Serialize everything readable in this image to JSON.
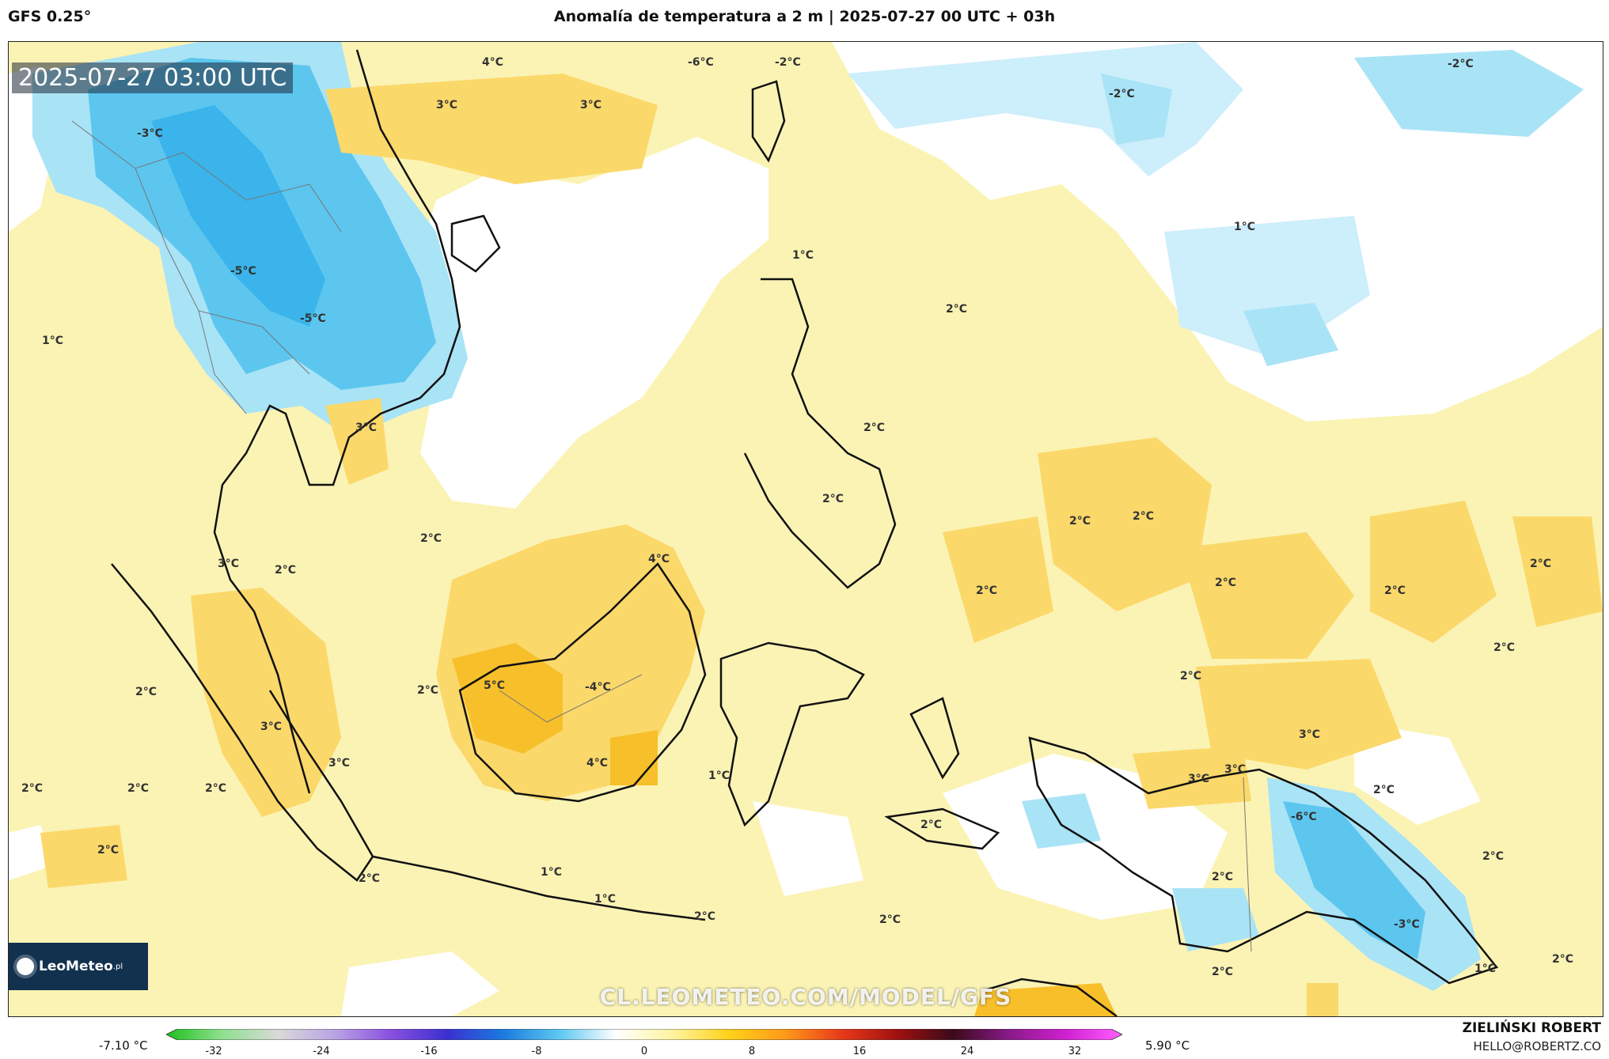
{
  "header": {
    "model": "GFS 0.25°",
    "title": "Anomalía de temperatura a 2 m | 2025-07-27 00 UTC + 03h"
  },
  "map": {
    "timestamp": "2025-07-27 03:00 UTC",
    "logo_text": "LeoMeteo",
    "logo_suffix": ".pl",
    "watermark": "CL.LEOMETEO.COM/MODEL/GFS",
    "labels": [
      {
        "text": "4°C"
      },
      {
        "text": "-6°C"
      },
      {
        "text": "-2°C"
      },
      {
        "text": "3°C"
      },
      {
        "text": "3°C"
      },
      {
        "text": "-3°C"
      },
      {
        "text": "-2°C"
      },
      {
        "text": "-2°C"
      },
      {
        "text": "1°C"
      },
      {
        "text": "1°C"
      },
      {
        "text": "-5°C"
      },
      {
        "text": "-5°C"
      },
      {
        "text": "2°C"
      },
      {
        "text": "1°C"
      },
      {
        "text": "3°C"
      },
      {
        "text": "2°C"
      },
      {
        "text": "2°C"
      },
      {
        "text": "2°C"
      },
      {
        "text": "2°C"
      },
      {
        "text": "3°C"
      },
      {
        "text": "2°C"
      },
      {
        "text": "4°C"
      },
      {
        "text": "2°C"
      },
      {
        "text": "2°C"
      },
      {
        "text": "2°C"
      },
      {
        "text": "2°C"
      },
      {
        "text": "2°C"
      },
      {
        "text": "2°C"
      },
      {
        "text": "2°C"
      },
      {
        "text": "5°C"
      },
      {
        "text": "-4°C"
      },
      {
        "text": "3°C"
      },
      {
        "text": "2°C"
      },
      {
        "text": "2°C"
      },
      {
        "text": "3°C"
      },
      {
        "text": "3°C"
      },
      {
        "text": "3°C"
      },
      {
        "text": "4°C"
      },
      {
        "text": "1°C"
      },
      {
        "text": "2°C"
      },
      {
        "text": "2°C"
      },
      {
        "text": "2°C"
      },
      {
        "text": "2°C"
      },
      {
        "text": "2°C"
      },
      {
        "text": "3°C"
      },
      {
        "text": "-6°C"
      },
      {
        "text": "2°C"
      },
      {
        "text": "2°C"
      },
      {
        "text": "2°C"
      },
      {
        "text": "1°C"
      },
      {
        "text": "1°C"
      },
      {
        "text": "2°C"
      },
      {
        "text": "-3°C"
      },
      {
        "text": "2°C"
      },
      {
        "text": "2°C"
      },
      {
        "text": "1°C"
      },
      {
        "text": "2°C"
      },
      {
        "text": "2°C"
      }
    ]
  },
  "colorbar": {
    "min_label": "-7.10 °C",
    "max_label": "5.90 °C",
    "ticks": [
      "-32",
      "-24",
      "-16",
      "-8",
      "0",
      "8",
      "16",
      "24",
      "32"
    ],
    "colors": [
      "#1fbf1f",
      "#8fe08f",
      "#d9d9d9",
      "#b9a3e3",
      "#8a4fe0",
      "#3a30d0",
      "#1b7be0",
      "#5fc8f0",
      "#ffffff",
      "#fff3a0",
      "#ffd21a",
      "#ff9a1a",
      "#e83a1a",
      "#a01010",
      "#3a0a1a",
      "#8a1a8a",
      "#d020d0",
      "#ff60ff"
    ]
  },
  "footer": {
    "author": "ZIELIŃSKI ROBERT",
    "email": "HELLO@ROBERTZ.CO"
  }
}
